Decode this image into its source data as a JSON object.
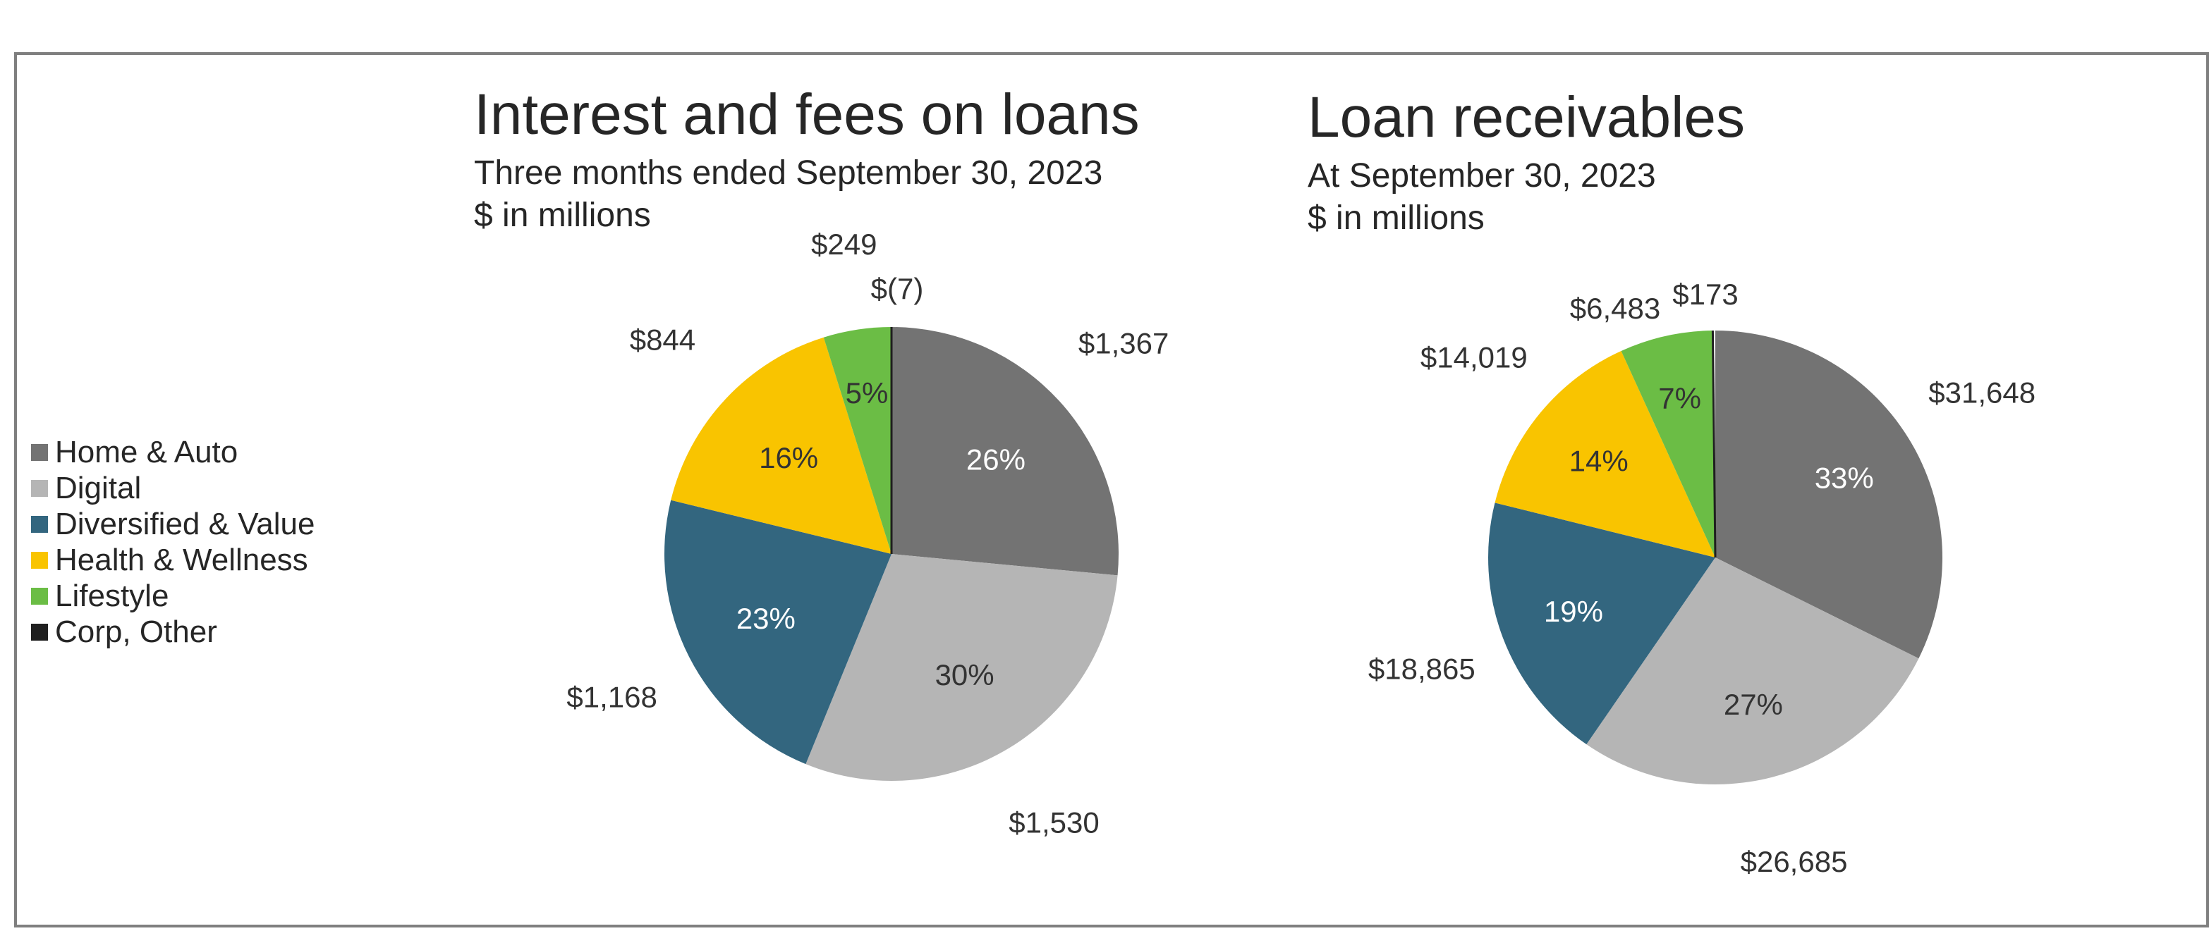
{
  "legend": [
    {
      "name": "Home & Auto",
      "color": "#737373"
    },
    {
      "name": "Digital",
      "color": "#b5b5b5"
    },
    {
      "name": "Diversified & Value",
      "color": "#33667f"
    },
    {
      "name": "Health & Wellness",
      "color": "#f9c400"
    },
    {
      "name": "Lifestyle",
      "color": "#6bbd45"
    },
    {
      "name": "Corp, Other",
      "color": "#1f1f1f"
    }
  ],
  "chart_data": [
    {
      "type": "pie",
      "title": "Interest and fees on loans",
      "subtitle": "Three months ended September 30, 2023",
      "unit": "$ in millions",
      "legend_position": "left",
      "slices": [
        {
          "category": "Home & Auto",
          "value": 1367,
          "value_label": "$1,367",
          "percent_label": "26%"
        },
        {
          "category": "Digital",
          "value": 1530,
          "value_label": "$1,530",
          "percent_label": "30%"
        },
        {
          "category": "Diversified & Value",
          "value": 1168,
          "value_label": "$1,168",
          "percent_label": "23%"
        },
        {
          "category": "Health & Wellness",
          "value": 844,
          "value_label": "$844",
          "percent_label": "16%"
        },
        {
          "category": "Lifestyle",
          "value": 249,
          "value_label": "$249",
          "percent_label": "5%"
        },
        {
          "category": "Corp, Other",
          "value": -7,
          "value_label": "$(7)",
          "percent_label": ""
        }
      ]
    },
    {
      "type": "pie",
      "title": "Loan receivables",
      "subtitle": "At September 30, 2023",
      "unit": "$ in millions",
      "legend_position": "left",
      "slices": [
        {
          "category": "Home & Auto",
          "value": 31648,
          "value_label": "$31,648",
          "percent_label": "33%"
        },
        {
          "category": "Digital",
          "value": 26685,
          "value_label": "$26,685",
          "percent_label": "27%"
        },
        {
          "category": "Diversified & Value",
          "value": 18865,
          "value_label": "$18,865",
          "percent_label": "19%"
        },
        {
          "category": "Health & Wellness",
          "value": 14019,
          "value_label": "$14,019",
          "percent_label": "14%"
        },
        {
          "category": "Lifestyle",
          "value": 6483,
          "value_label": "$6,483",
          "percent_label": "7%"
        },
        {
          "category": "Corp, Other",
          "value": 173,
          "value_label": "$173",
          "percent_label": ""
        }
      ]
    }
  ]
}
